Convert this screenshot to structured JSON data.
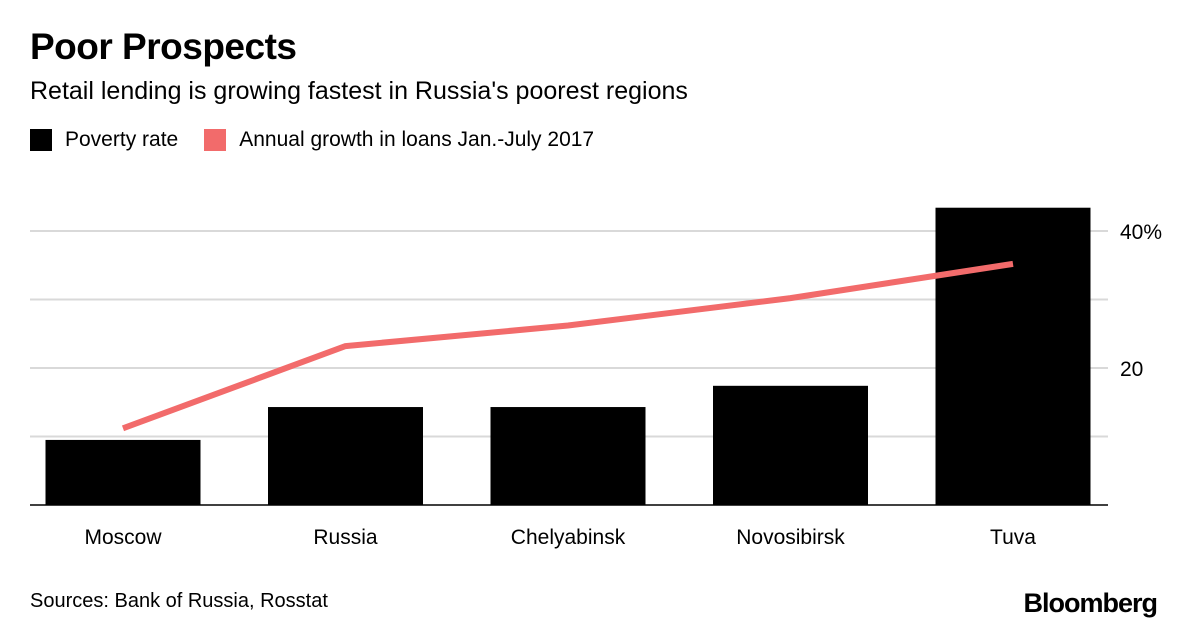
{
  "header": {
    "title": "Poor Prospects",
    "subtitle": "Retail lending is growing fastest in Russia's poorest regions"
  },
  "legend": [
    {
      "label": "Poverty rate",
      "color": "#000000"
    },
    {
      "label": "Annual growth in loans Jan.-July 2017",
      "color": "#f26b6b"
    }
  ],
  "footer": {
    "source": "Sources: Bank of Russia, Rosstat",
    "logo": "Bloomberg"
  },
  "chart_data": {
    "type": "bar",
    "categories": [
      "Moscow",
      "Russia",
      "Chelyabinsk",
      "Novosibirsk",
      "Tuva"
    ],
    "series": [
      {
        "name": "Poverty rate",
        "type": "bar",
        "color": "#000000",
        "values": [
          9.5,
          14.3,
          14.3,
          17.4,
          43.4
        ]
      },
      {
        "name": "Annual growth in loans Jan.-July 2017",
        "type": "line",
        "color": "#f26b6b",
        "values": [
          11.2,
          23.2,
          26.2,
          30.2,
          35.2
        ]
      }
    ],
    "yticks": [
      {
        "value": 0,
        "label": ""
      },
      {
        "value": 10,
        "label": ""
      },
      {
        "value": 20,
        "label": "20"
      },
      {
        "value": 30,
        "label": ""
      },
      {
        "value": 40,
        "label": "40%"
      }
    ],
    "ylim": [
      0,
      44
    ],
    "axis_position": "right",
    "grid": true
  }
}
